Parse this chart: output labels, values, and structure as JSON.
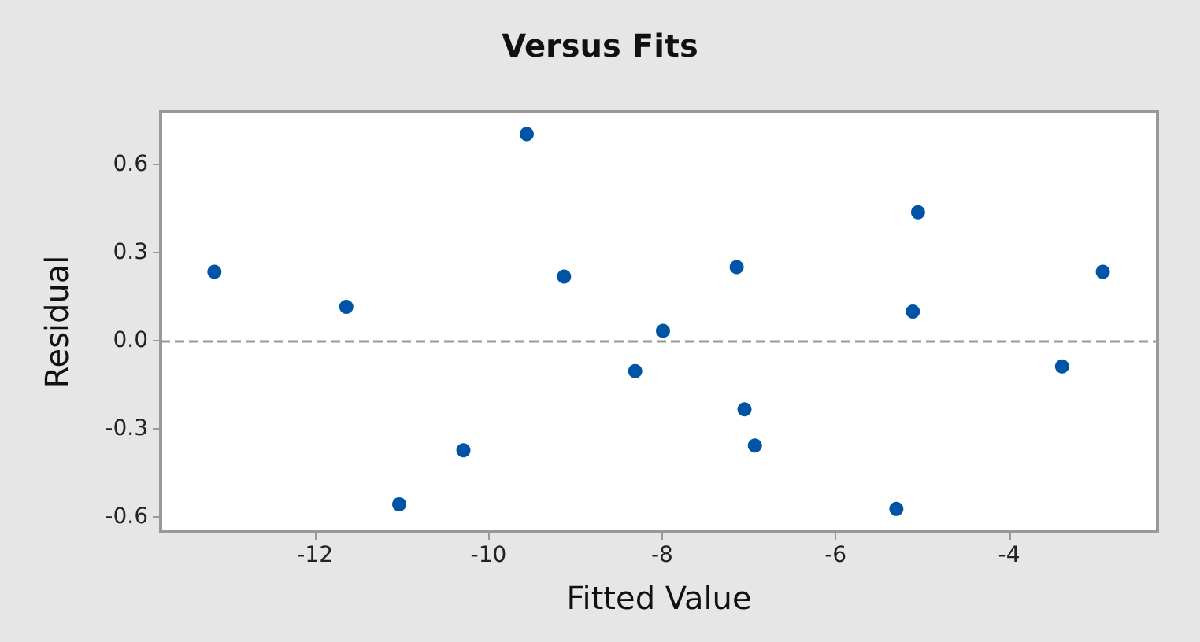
{
  "chart_data": {
    "type": "scatter",
    "title": "Versus Fits",
    "xlabel": "Fitted Value",
    "ylabel": "Residual",
    "x": [
      -13.16,
      -11.64,
      -11.03,
      -10.29,
      -9.56,
      -9.13,
      -8.31,
      -7.99,
      -7.14,
      -7.05,
      -6.93,
      -5.3,
      -5.11,
      -5.05,
      -3.39,
      -2.92
    ],
    "series": [
      {
        "color": "#0054a6",
        "values": [
          0.235,
          0.116,
          -0.556,
          -0.372,
          0.704,
          0.219,
          -0.103,
          0.034,
          0.251,
          -0.233,
          -0.356,
          -0.572,
          0.1,
          0.438,
          -0.087,
          0.235
        ]
      }
    ],
    "xlim": [
      -13.78,
      -2.29
    ],
    "xticks": [
      -12,
      -10,
      -8,
      -6,
      -4
    ],
    "ylim": [
      -0.65,
      0.78
    ],
    "yticks": [
      -0.6,
      -0.3,
      {
        "value": 0,
        "label": "0.0"
      },
      0.3,
      0.6
    ],
    "ref_lines": [
      {
        "axis": "y",
        "value": 0,
        "color": "#999999",
        "line_style": "dashed"
      }
    ],
    "grid": false,
    "marker": "circle"
  }
}
